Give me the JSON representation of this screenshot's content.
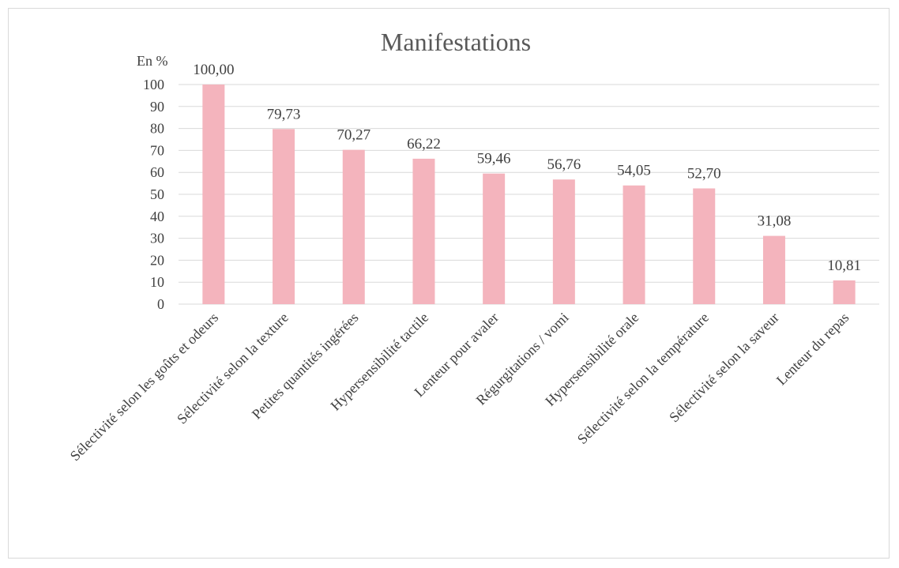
{
  "chart_data": {
    "type": "bar",
    "title": "Manifestations",
    "ylabel": "En %",
    "xlabel": "",
    "ylim": [
      0,
      100
    ],
    "yticks": [
      0,
      10,
      20,
      30,
      40,
      50,
      60,
      70,
      80,
      90,
      100
    ],
    "grid": true,
    "legend": "none",
    "bar_color": "#f4b4bd",
    "categories": [
      "Sélectivité selon les goûts et odeurs",
      "Sélectivité selon la texture",
      "Petites quantités ingérées",
      "Hypersensibilité tactile",
      "Lenteur pour avaler",
      "Régurgitations / vomi",
      "Hypersensibilité orale",
      "Sélectivité selon la température",
      "Sélectivité selon la saveur",
      "Lenteur du repas"
    ],
    "values": [
      100.0,
      79.73,
      70.27,
      66.22,
      59.46,
      56.76,
      54.05,
      52.7,
      31.08,
      10.81
    ],
    "data_labels": [
      "100,00",
      "79,73",
      "70,27",
      "66,22",
      "59,46",
      "56,76",
      "54,05",
      "52,70",
      "31,08",
      "10,81"
    ]
  }
}
